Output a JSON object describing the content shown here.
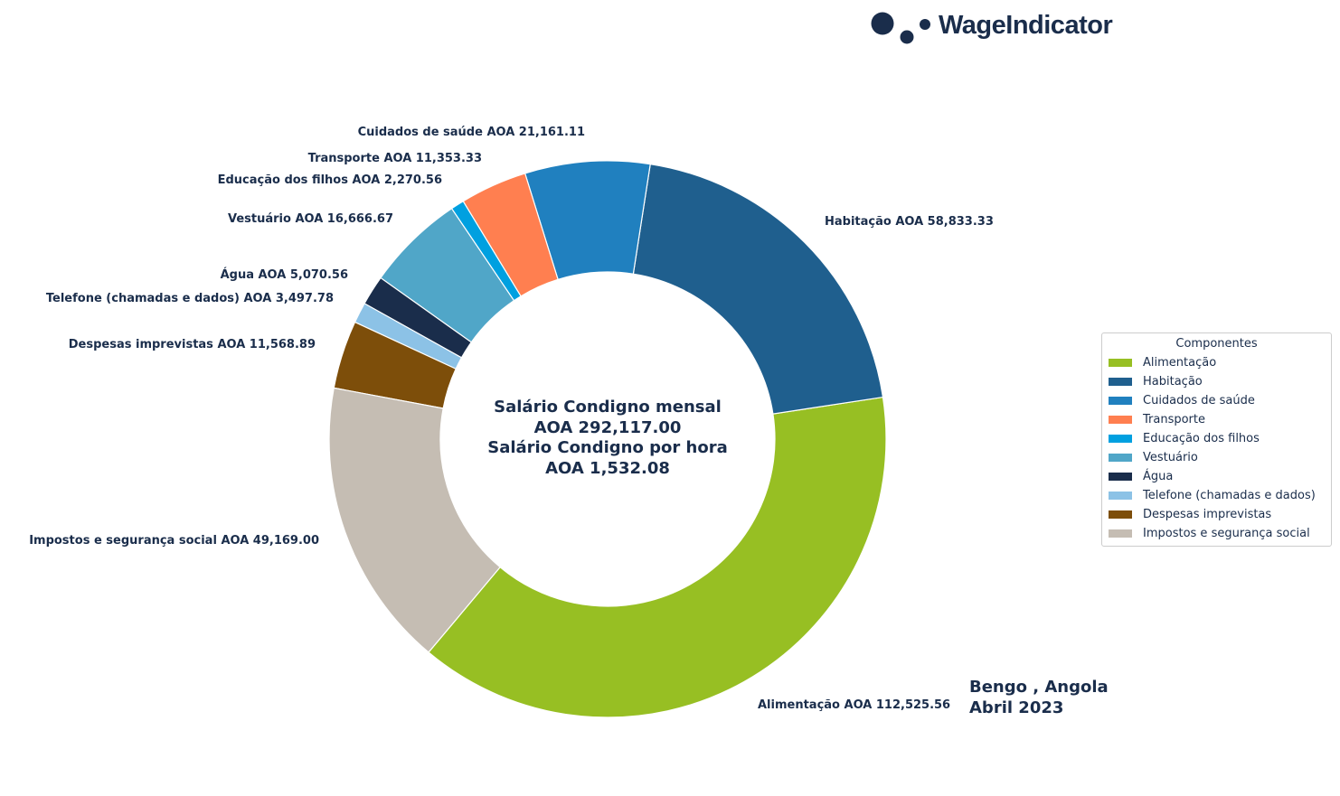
{
  "logo": {
    "text": "WageIndicator"
  },
  "center_text": {
    "line1": "Salário Condigno mensal",
    "line2": "AOA 292,117.00",
    "line3": "Salário Condigno por hora",
    "line4": "AOA 1,532.08"
  },
  "location": {
    "line1": "Bengo , Angola",
    "line2": "Abril 2023"
  },
  "chart_data": {
    "type": "pie",
    "variant": "donut",
    "currency": "AOA",
    "start_angle_deg": -130,
    "direction": "counterclockwise",
    "legend_title": "Componentes",
    "legend_placement": "right",
    "categories": [
      "Alimentação",
      "Habitação",
      "Cuidados de saúde",
      "Transporte",
      "Educação dos filhos",
      "Vestuário",
      "Água",
      "Telefone (chamadas e dados)",
      "Despesas imprevistas",
      "Impostos e segurança social"
    ],
    "values": [
      112525.56,
      58833.33,
      21161.11,
      11353.33,
      2270.56,
      16666.67,
      5070.56,
      3497.78,
      11568.89,
      49169.0
    ],
    "colors": [
      "#97bf23",
      "#1f5f8e",
      "#2080bf",
      "#ff7f50",
      "#00a0e0",
      "#50a6c8",
      "#1a2d4b",
      "#8cc2e6",
      "#7d4e0a",
      "#c5bdb3"
    ],
    "data_labels": [
      "Alimentação AOA 112,525.56",
      "Habitação AOA 58,833.33",
      "Cuidados de saúde AOA 21,161.11",
      "Transporte AOA 11,353.33",
      "Educação dos filhos AOA 2,270.56",
      "Vestuário AOA 16,666.67",
      "Água AOA 5,070.56",
      "Telefone (chamadas e dados) AOA 3,497.78",
      "Despesas imprevistas AOA 11,568.89",
      "Impostos e segurança social AOA 49,169.00"
    ]
  }
}
